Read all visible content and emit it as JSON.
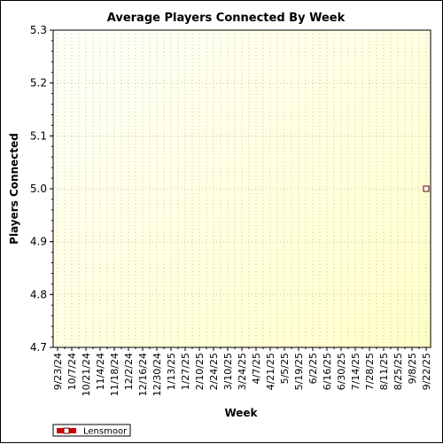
{
  "chart_data": {
    "type": "line",
    "title": "Average Players Connected By Week",
    "xlabel": "Week",
    "ylabel": "Players Connected",
    "ylim": [
      4.7,
      5.3
    ],
    "yticks": [
      4.7,
      4.8,
      4.9,
      5.0,
      5.1,
      5.2,
      5.3
    ],
    "categories": [
      "9/23/24",
      "10/7/24",
      "10/21/24",
      "11/4/24",
      "11/18/24",
      "12/2/24",
      "12/16/24",
      "12/30/24",
      "1/13/25",
      "1/27/25",
      "2/10/25",
      "2/24/25",
      "3/10/25",
      "3/24/25",
      "4/7/25",
      "4/21/25",
      "5/5/25",
      "5/19/25",
      "6/2/25",
      "6/16/25",
      "6/30/25",
      "7/14/25",
      "7/28/25",
      "8/11/25",
      "8/25/25",
      "9/8/25",
      "9/22/25"
    ],
    "series": [
      {
        "name": "Lensmoor",
        "points": [
          {
            "x": "9/22/25",
            "y": 5.0
          }
        ]
      }
    ],
    "grid": true,
    "legend": "bottom-left",
    "colors": {
      "background_top": "#fffff0",
      "background_bottom": "#ffffcc",
      "series": "#cc0000",
      "grid": "#c8c8a0"
    }
  }
}
